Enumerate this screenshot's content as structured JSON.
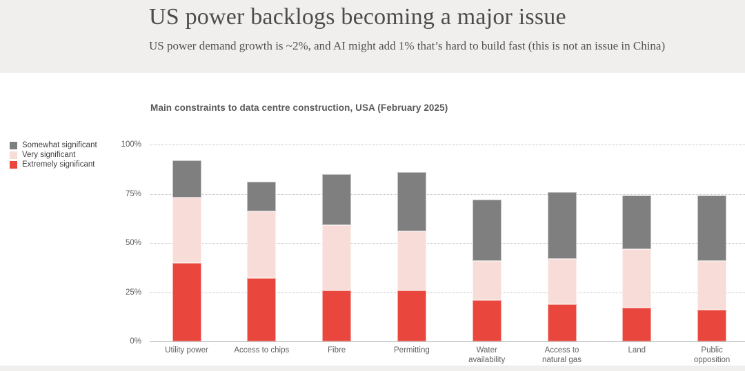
{
  "header": {
    "title": "US power backlogs becoming a major issue",
    "subtitle": "US power demand growth is ~2%, and AI might add 1% that’s hard to build fast (this is not an issue in China)"
  },
  "chart_data": {
    "type": "bar",
    "stacked": true,
    "title": "Main constraints to data centre construction, USA (February 2025)",
    "categories": [
      "Utility power",
      "Access to chips",
      "Fibre",
      "Permitting",
      "Water availability",
      "Access to natural gas",
      "Land",
      "Public opposition"
    ],
    "category_lines": [
      [
        "Utility power"
      ],
      [
        "Access to chips"
      ],
      [
        "Fibre"
      ],
      [
        "Permitting"
      ],
      [
        "Water",
        "availability"
      ],
      [
        "Access to",
        "natural gas"
      ],
      [
        "Land"
      ],
      [
        "Public",
        "opposition"
      ]
    ],
    "series": [
      {
        "name": "Extremely significant",
        "color": "#e9473d",
        "values": [
          40,
          32,
          26,
          26,
          21,
          19,
          17,
          16
        ]
      },
      {
        "name": "Very significant",
        "color": "#f8dcd8",
        "values": [
          33,
          34,
          33,
          30,
          20,
          23,
          30,
          25
        ]
      },
      {
        "name": "Somewhat significant",
        "color": "#7f7f7f",
        "values": [
          19,
          15,
          26,
          30,
          31,
          34,
          27,
          33
        ]
      }
    ],
    "stack_totals": [
      92,
      81,
      85,
      86,
      72,
      76,
      74,
      74
    ],
    "legend": [
      {
        "label": "Somewhat significant",
        "color": "#7f7f7f"
      },
      {
        "label": "Very significant",
        "color": "#f8dcd8"
      },
      {
        "label": "Extremely significant",
        "color": "#e9473d"
      }
    ],
    "yticks": [
      0,
      25,
      50,
      75,
      100
    ],
    "ytick_format": "percent",
    "ylim": [
      0,
      100
    ],
    "grid": "horizontal dotted",
    "legend_position": "left",
    "colors": {
      "header_band": "#f0efed",
      "axis_line": "#b5b5b5",
      "gridline": "#bdbdbd",
      "title_text": "#4c4c4c"
    }
  }
}
